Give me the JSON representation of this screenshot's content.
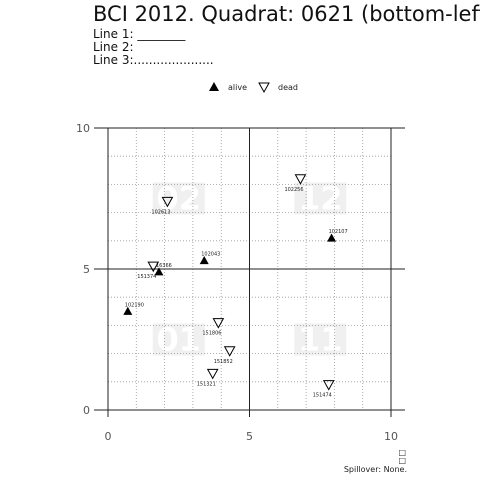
{
  "header": {
    "title": "BCI 2012. Quadrat:  0621 (bottom-left)",
    "line1": "Line 1: ________",
    "line2": "Line 2: ",
    "line3": "Line 3:....................."
  },
  "footer": {
    "marks": "□\n□",
    "spillover": "Spillover: None."
  },
  "chart_data": {
    "type": "scatter",
    "title": "BCI 2012. Quadrat:  0621 (bottom-left)",
    "xlabel": "",
    "ylabel": "",
    "xlim": [
      0,
      10
    ],
    "ylim": [
      0,
      10
    ],
    "xticks": [
      0,
      5,
      10
    ],
    "yticks": [
      0,
      5,
      10
    ],
    "grid": true,
    "legend_position": "top",
    "legend": [
      {
        "name": "alive",
        "marker": "filled-triangle-up"
      },
      {
        "name": "dead",
        "marker": "open-triangle-down"
      }
    ],
    "quadrat_labels": [
      {
        "text": "02",
        "x": 2.5,
        "y": 7.5
      },
      {
        "text": "12",
        "x": 7.5,
        "y": 7.5
      },
      {
        "text": "01",
        "x": 2.5,
        "y": 2.5
      },
      {
        "text": "11",
        "x": 7.5,
        "y": 2.5
      }
    ],
    "series": [
      {
        "name": "alive",
        "points": [
          {
            "x": 0.7,
            "y": 3.5,
            "tag": "102190"
          },
          {
            "x": 1.8,
            "y": 4.9,
            "tag": "16366"
          },
          {
            "x": 3.4,
            "y": 5.3,
            "tag": "102043"
          },
          {
            "x": 7.9,
            "y": 6.1,
            "tag": "102107"
          }
        ]
      },
      {
        "name": "dead",
        "points": [
          {
            "x": 1.6,
            "y": 5.1,
            "tag": "151374"
          },
          {
            "x": 2.1,
            "y": 7.4,
            "tag": "102613"
          },
          {
            "x": 6.8,
            "y": 8.2,
            "tag": "102256"
          },
          {
            "x": 3.9,
            "y": 3.1,
            "tag": "151806"
          },
          {
            "x": 4.3,
            "y": 2.1,
            "tag": "151852"
          },
          {
            "x": 3.7,
            "y": 1.3,
            "tag": "151321"
          },
          {
            "x": 7.8,
            "y": 0.9,
            "tag": "151474"
          }
        ]
      }
    ]
  }
}
